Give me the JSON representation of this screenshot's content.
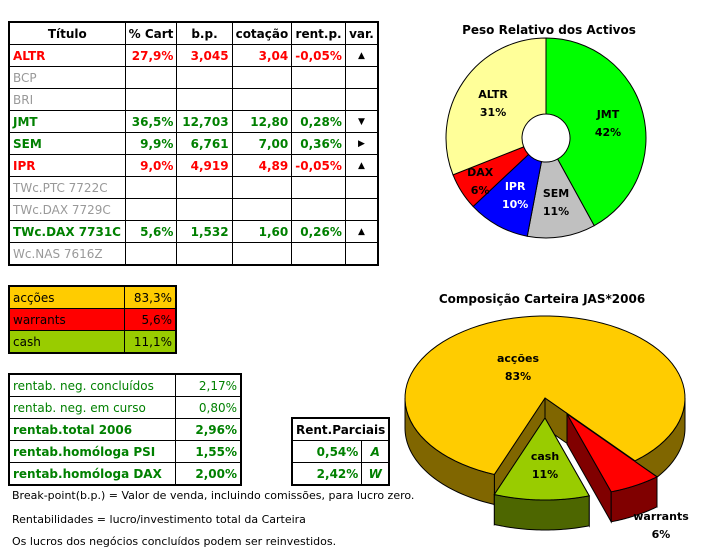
{
  "assets_table": {
    "headers": [
      "Título",
      "% Cart",
      "b.p.",
      "cotação",
      "rent.p.",
      "var."
    ],
    "rows": [
      {
        "titulo": "ALTR",
        "cart": "27,9%",
        "bp": "3,045",
        "cotacao": "3,04",
        "rent": "-0,05%",
        "var": "up",
        "style": "red"
      },
      {
        "titulo": "BCP",
        "cart": "",
        "bp": "",
        "cotacao": "",
        "rent": "",
        "var": "",
        "style": "grey"
      },
      {
        "titulo": "BRI",
        "cart": "",
        "bp": "",
        "cotacao": "",
        "rent": "",
        "var": "",
        "style": "grey"
      },
      {
        "titulo": "JMT",
        "cart": "36,5%",
        "bp": "12,703",
        "cotacao": "12,80",
        "rent": "0,28%",
        "var": "down",
        "style": "green"
      },
      {
        "titulo": "SEM",
        "cart": "9,9%",
        "bp": "6,761",
        "cotacao": "7,00",
        "rent": "0,36%",
        "var": "right",
        "style": "green"
      },
      {
        "titulo": "IPR",
        "cart": "9,0%",
        "bp": "4,919",
        "cotacao": "4,89",
        "rent": "-0,05%",
        "var": "up",
        "style": "red"
      },
      {
        "titulo": "TWc.PTC 7722C",
        "cart": "",
        "bp": "",
        "cotacao": "",
        "rent": "",
        "var": "",
        "style": "grey"
      },
      {
        "titulo": "TWc.DAX 7729C",
        "cart": "",
        "bp": "",
        "cotacao": "",
        "rent": "",
        "var": "",
        "style": "grey"
      },
      {
        "titulo": "TWc.DAX 7731C",
        "cart": "5,6%",
        "bp": "1,532",
        "cotacao": "1,60",
        "rent": "0,26%",
        "var": "up",
        "style": "green"
      },
      {
        "titulo": "Wc.NAS 7616Z",
        "cart": "",
        "bp": "",
        "cotacao": "",
        "rent": "",
        "var": "",
        "style": "grey"
      }
    ]
  },
  "allocation_table": [
    {
      "label": "acções",
      "value": "83,3%",
      "color": "#ffcc00"
    },
    {
      "label": "warrants",
      "value": "5,6%",
      "color": "#ff0000"
    },
    {
      "label": "cash",
      "value": "11,1%",
      "color": "#99cc00"
    }
  ],
  "rentab_table": [
    {
      "label": "rentab. neg. concluídos",
      "value": "2,17%",
      "bold": false
    },
    {
      "label": "rentab. neg. em curso",
      "value": "0,80%",
      "bold": false
    },
    {
      "label": "rentab.total 2006",
      "value": "2,96%",
      "bold": true
    },
    {
      "label": "rentab.homóloga PSI",
      "value": "1,55%",
      "bold": true
    },
    {
      "label": "rentab.homóloga DAX",
      "value": "2,00%",
      "bold": true
    }
  ],
  "parciais_table": {
    "header": "Rent.Parciais",
    "rows": [
      {
        "value": "0,54%",
        "code": "A"
      },
      {
        "value": "2,42%",
        "code": "W"
      }
    ]
  },
  "notes": [
    "Break-point(b.p.) = Valor de venda, incluindo comissões, para lucro zero.",
    "Rentabilidades = lucro/investimento total da Carteira",
    "Os lucros dos negócios concluídos podem ser reinvestidos."
  ],
  "chart_data": [
    {
      "type": "pie",
      "variant": "doughnut",
      "title": "Peso Relativo dos Activos",
      "categories": [
        "JMT",
        "SEM",
        "IPR",
        "DAX",
        "ALTR"
      ],
      "values": [
        42,
        11,
        10,
        6,
        31
      ],
      "labels": [
        "42%",
        "11%",
        "10%",
        "6%",
        "31%"
      ],
      "colors": [
        "#00ff00",
        "#c0c0c0",
        "#0000ff",
        "#ff0000",
        "#ffff99"
      ],
      "label_colors": [
        "#000",
        "#000",
        "#fff",
        "#000",
        "#000"
      ]
    },
    {
      "type": "pie",
      "variant": "3d-exploded",
      "title": "Composição Carteira JAS*2006",
      "categories": [
        "warrants",
        "cash",
        "acções"
      ],
      "values": [
        6,
        11,
        83
      ],
      "labels": [
        "6%",
        "11%",
        "83%"
      ],
      "colors": [
        "#ff0000",
        "#99cc00",
        "#ffcc00"
      ],
      "side_colors": [
        "#800000",
        "#4d6600",
        "#806600"
      ]
    }
  ]
}
